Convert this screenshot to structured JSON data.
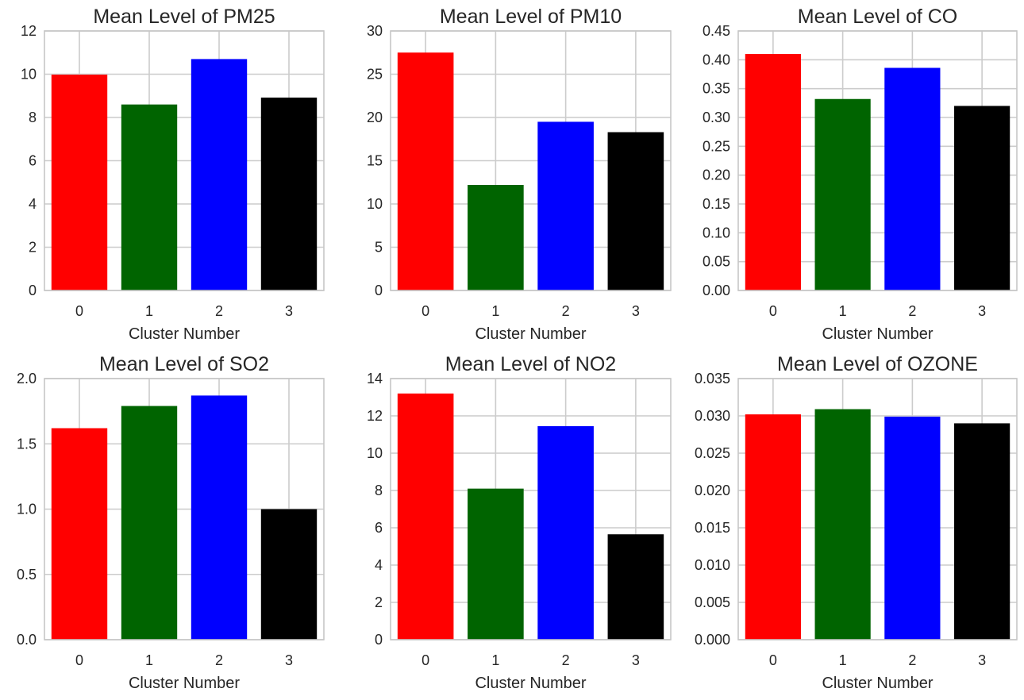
{
  "chart_data": [
    {
      "type": "bar",
      "title": "Mean Level of PM25",
      "xlabel": "Cluster Number",
      "ylabel": "",
      "categories": [
        "0",
        "1",
        "2",
        "3"
      ],
      "values": [
        9.98,
        8.6,
        10.7,
        8.92
      ],
      "colors": [
        "#ff0000",
        "#006400",
        "#0000ff",
        "#000000"
      ],
      "ylim": [
        0,
        12
      ],
      "yticks": [
        "0",
        "2",
        "4",
        "6",
        "8",
        "10",
        "12"
      ],
      "grid": true
    },
    {
      "type": "bar",
      "title": "Mean Level of PM10",
      "xlabel": "Cluster Number",
      "ylabel": "",
      "categories": [
        "0",
        "1",
        "2",
        "3"
      ],
      "values": [
        27.5,
        12.2,
        19.5,
        18.3
      ],
      "colors": [
        "#ff0000",
        "#006400",
        "#0000ff",
        "#000000"
      ],
      "ylim": [
        0,
        30
      ],
      "yticks": [
        "0",
        "5",
        "10",
        "15",
        "20",
        "25",
        "30"
      ],
      "grid": true
    },
    {
      "type": "bar",
      "title": "Mean Level of CO",
      "xlabel": "Cluster Number",
      "ylabel": "",
      "categories": [
        "0",
        "1",
        "2",
        "3"
      ],
      "values": [
        0.41,
        0.332,
        0.386,
        0.32
      ],
      "colors": [
        "#ff0000",
        "#006400",
        "#0000ff",
        "#000000"
      ],
      "ylim": [
        0,
        0.45
      ],
      "yticks": [
        "0.00",
        "0.05",
        "0.10",
        "0.15",
        "0.20",
        "0.25",
        "0.30",
        "0.35",
        "0.40",
        "0.45"
      ],
      "grid": true
    },
    {
      "type": "bar",
      "title": "Mean Level of SO2",
      "xlabel": "Cluster Number",
      "ylabel": "",
      "categories": [
        "0",
        "1",
        "2",
        "3"
      ],
      "values": [
        1.62,
        1.79,
        1.87,
        1.0
      ],
      "colors": [
        "#ff0000",
        "#006400",
        "#0000ff",
        "#000000"
      ],
      "ylim": [
        0,
        2.0
      ],
      "yticks": [
        "0.0",
        "0.5",
        "1.0",
        "1.5",
        "2.0"
      ],
      "grid": true
    },
    {
      "type": "bar",
      "title": "Mean Level of NO2",
      "xlabel": "Cluster Number",
      "ylabel": "",
      "categories": [
        "0",
        "1",
        "2",
        "3"
      ],
      "values": [
        13.2,
        8.1,
        11.45,
        5.65
      ],
      "colors": [
        "#ff0000",
        "#006400",
        "#0000ff",
        "#000000"
      ],
      "ylim": [
        0,
        14
      ],
      "yticks": [
        "0",
        "2",
        "4",
        "6",
        "8",
        "10",
        "12",
        "14"
      ],
      "grid": true
    },
    {
      "type": "bar",
      "title": "Mean Level of OZONE",
      "xlabel": "Cluster Number",
      "ylabel": "",
      "categories": [
        "0",
        "1",
        "2",
        "3"
      ],
      "values": [
        0.0302,
        0.0309,
        0.0299,
        0.029
      ],
      "colors": [
        "#ff0000",
        "#006400",
        "#0000ff",
        "#000000"
      ],
      "ylim": [
        0,
        0.035
      ],
      "yticks": [
        "0.000",
        "0.005",
        "0.010",
        "0.015",
        "0.020",
        "0.025",
        "0.030",
        "0.035"
      ],
      "grid": true
    }
  ]
}
